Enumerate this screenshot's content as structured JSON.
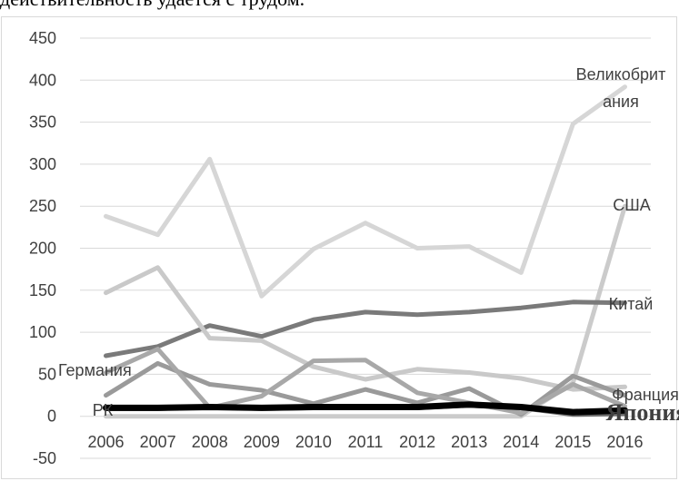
{
  "header_text": "действительность удается с трудом.",
  "chart_data": {
    "type": "line",
    "title": "",
    "xlabel": "",
    "ylabel": "",
    "ylim": [
      -50,
      450
    ],
    "yticks": [
      450,
      400,
      350,
      300,
      250,
      200,
      150,
      100,
      50,
      0,
      -50
    ],
    "x": [
      "2006",
      "2007",
      "2008",
      "2009",
      "2010",
      "2011",
      "2012",
      "2013",
      "2014",
      "2015",
      "2016"
    ],
    "grid": true,
    "series": [
      {
        "name": "Великобритания",
        "label_lines": [
          "Великобрит",
          "ания"
        ],
        "color": "#d6d6d6",
        "width": 5,
        "values": [
          238,
          216,
          306,
          143,
          199,
          230,
          200,
          202,
          171,
          348,
          392
        ]
      },
      {
        "name": "США",
        "label_lines": [
          "США"
        ],
        "color": "#cbcbcb",
        "width": 5,
        "values": [
          0,
          0,
          0,
          0,
          0,
          0,
          0,
          0,
          0,
          40,
          250
        ]
      },
      {
        "name": "Китай",
        "label_lines": [
          "Китай"
        ],
        "color": "#7a7a7a",
        "width": 5,
        "values": [
          72,
          83,
          108,
          95,
          115,
          124,
          121,
          124,
          129,
          136,
          135
        ]
      },
      {
        "name": "Германия",
        "label_lines": [
          "Германия"
        ],
        "color": "#c9c9c9",
        "width": 5,
        "values": [
          147,
          177,
          93,
          90,
          59,
          44,
          56,
          52,
          45,
          32,
          35
        ]
      },
      {
        "name": "",
        "label_lines": [],
        "color": "#9a9a9a",
        "width": 5,
        "values": [
          25,
          63,
          38,
          31,
          15,
          32,
          16,
          33,
          2,
          48,
          25
        ]
      },
      {
        "name": "Франция",
        "label_lines": [
          "Франция"
        ],
        "color": "#a8a8a8",
        "width": 5,
        "values": [
          52,
          80,
          10,
          24,
          66,
          67,
          28,
          16,
          4,
          38,
          12
        ]
      },
      {
        "name": "РК",
        "label_lines": [
          "РК"
        ],
        "color": "#6a6a6a",
        "width": 5,
        "values": [
          9,
          9,
          11,
          9,
          10,
          10,
          10,
          13,
          10,
          2,
          3
        ]
      },
      {
        "name": "Япония",
        "label_lines": [
          "Япония"
        ],
        "color": "#000000",
        "width": 7,
        "values": [
          10,
          10,
          11,
          10,
          11,
          11,
          11,
          14,
          11,
          5,
          7
        ]
      }
    ]
  }
}
